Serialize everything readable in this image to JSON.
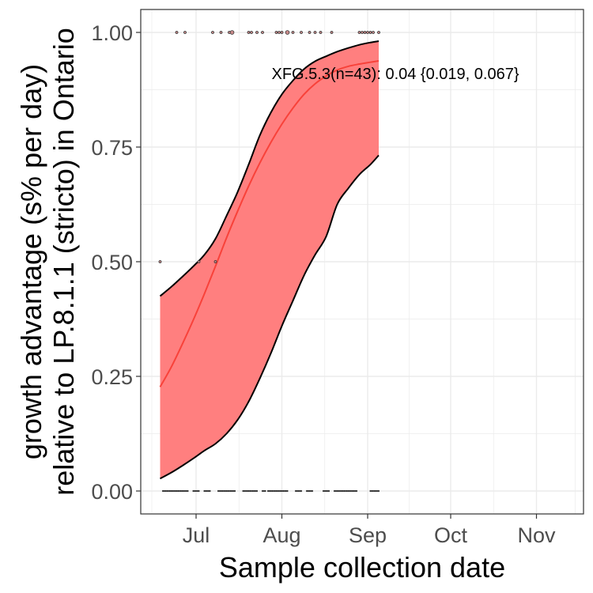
{
  "chart_data": {
    "type": "line",
    "xlabel": "Sample collection date",
    "ylabel_line1": "growth advantage (s% per day)",
    "ylabel_line2": "relative to LP.8.1.1 (stricto) in Ontario",
    "annotation": "XFG.5.3(n=43): 0.04 {0.019, 0.067}",
    "xlim": [
      "2025-06-11",
      "2025-11-18"
    ],
    "ylim": [
      -0.05,
      1.05
    ],
    "x_ticks": [
      {
        "date": "2025-07-01",
        "label": "Jul"
      },
      {
        "date": "2025-08-01",
        "label": "Aug"
      },
      {
        "date": "2025-09-01",
        "label": "Sep"
      },
      {
        "date": "2025-10-01",
        "label": "Oct"
      },
      {
        "date": "2025-11-01",
        "label": "Nov"
      }
    ],
    "y_ticks": [
      {
        "value": 0,
        "label": "0.00"
      },
      {
        "value": 0.25,
        "label": "0.25"
      },
      {
        "value": 0.5,
        "label": "0.50"
      },
      {
        "value": 0.75,
        "label": "0.75"
      },
      {
        "value": 1,
        "label": "1.00"
      }
    ],
    "grid": true,
    "colors": {
      "ribbon": "#ff7f7f",
      "fit_line": "#f8423a",
      "ribbon_edge": "#000000",
      "point_fill": "#c98a8a",
      "grid": "#ebebeb",
      "panel_border": "#333333"
    },
    "fit": [
      {
        "x": "2025-06-18",
        "y": 0.227,
        "lower": 0.027,
        "upper": 0.425
      },
      {
        "x": "2025-06-22",
        "y": 0.27,
        "lower": 0.04,
        "upper": 0.445
      },
      {
        "x": "2025-06-26",
        "y": 0.32,
        "lower": 0.055,
        "upper": 0.467
      },
      {
        "x": "2025-06-30",
        "y": 0.373,
        "lower": 0.071,
        "upper": 0.49
      },
      {
        "x": "2025-07-04",
        "y": 0.43,
        "lower": 0.088,
        "upper": 0.515
      },
      {
        "x": "2025-07-08",
        "y": 0.49,
        "lower": 0.103,
        "upper": 0.55
      },
      {
        "x": "2025-07-12",
        "y": 0.552,
        "lower": 0.125,
        "upper": 0.6
      },
      {
        "x": "2025-07-16",
        "y": 0.61,
        "lower": 0.155,
        "upper": 0.652
      },
      {
        "x": "2025-07-20",
        "y": 0.665,
        "lower": 0.195,
        "upper": 0.712
      },
      {
        "x": "2025-07-24",
        "y": 0.715,
        "lower": 0.245,
        "upper": 0.775
      },
      {
        "x": "2025-07-28",
        "y": 0.76,
        "lower": 0.3,
        "upper": 0.825
      },
      {
        "x": "2025-08-01",
        "y": 0.8,
        "lower": 0.36,
        "upper": 0.865
      },
      {
        "x": "2025-08-05",
        "y": 0.835,
        "lower": 0.415,
        "upper": 0.895
      },
      {
        "x": "2025-08-09",
        "y": 0.865,
        "lower": 0.47,
        "upper": 0.92
      },
      {
        "x": "2025-08-13",
        "y": 0.888,
        "lower": 0.515,
        "upper": 0.937
      },
      {
        "x": "2025-08-17",
        "y": 0.905,
        "lower": 0.555,
        "upper": 0.948
      },
      {
        "x": "2025-08-21",
        "y": 0.918,
        "lower": 0.625,
        "upper": 0.958
      },
      {
        "x": "2025-08-25",
        "y": 0.926,
        "lower": 0.66,
        "upper": 0.966
      },
      {
        "x": "2025-08-29",
        "y": 0.931,
        "lower": 0.69,
        "upper": 0.973
      },
      {
        "x": "2025-09-02",
        "y": 0.935,
        "lower": 0.712,
        "upper": 0.978
      },
      {
        "x": "2025-09-05",
        "y": 0.938,
        "lower": 0.732,
        "upper": 0.981
      }
    ],
    "points": [
      {
        "x": "2025-06-18",
        "y": 0.5,
        "size": 1
      },
      {
        "x": "2025-06-24",
        "y": 1,
        "size": 1
      },
      {
        "x": "2025-06-27",
        "y": 1,
        "size": 1
      },
      {
        "x": "2025-07-07",
        "y": 1,
        "size": 1
      },
      {
        "x": "2025-07-10",
        "y": 1,
        "size": 1
      },
      {
        "x": "2025-07-13",
        "y": 1,
        "size": 1
      },
      {
        "x": "2025-07-14",
        "y": 1,
        "size": 2
      },
      {
        "x": "2025-07-20",
        "y": 1,
        "size": 1
      },
      {
        "x": "2025-07-21",
        "y": 1,
        "size": 1
      },
      {
        "x": "2025-07-23",
        "y": 1,
        "size": 1
      },
      {
        "x": "2025-07-25",
        "y": 1,
        "size": 1
      },
      {
        "x": "2025-07-30",
        "y": 1,
        "size": 1
      },
      {
        "x": "2025-07-31",
        "y": 1,
        "size": 1
      },
      {
        "x": "2025-08-01",
        "y": 1,
        "size": 1
      },
      {
        "x": "2025-08-03",
        "y": 1,
        "size": 2
      },
      {
        "x": "2025-08-05",
        "y": 1,
        "size": 1
      },
      {
        "x": "2025-08-08",
        "y": 1,
        "size": 1
      },
      {
        "x": "2025-08-11",
        "y": 1,
        "size": 1
      },
      {
        "x": "2025-08-13",
        "y": 1,
        "size": 1
      },
      {
        "x": "2025-08-15",
        "y": 1,
        "size": 1
      },
      {
        "x": "2025-08-19",
        "y": 1,
        "size": 1
      },
      {
        "x": "2025-08-29",
        "y": 1,
        "size": 1
      },
      {
        "x": "2025-08-30",
        "y": 1,
        "size": 1
      },
      {
        "x": "2025-08-31",
        "y": 1,
        "size": 1
      },
      {
        "x": "2025-09-01",
        "y": 1,
        "size": 1
      },
      {
        "x": "2025-09-02",
        "y": 1,
        "size": 1
      },
      {
        "x": "2025-09-03",
        "y": 1,
        "size": 1
      },
      {
        "x": "2025-09-05",
        "y": 1,
        "size": 1
      },
      {
        "x": "2025-07-02",
        "y": 0.5,
        "size": 1
      },
      {
        "x": "2025-07-08",
        "y": 0.5,
        "size": 1
      }
    ],
    "zero_points": [
      {
        "x_range": [
          "2025-06-19",
          "2025-06-28"
        ],
        "step_days": 0.5
      },
      {
        "x_range": [
          "2025-06-30",
          "2025-07-02"
        ],
        "step_days": 0.5
      },
      {
        "x_range": [
          "2025-07-04",
          "2025-07-06"
        ],
        "step_days": 0.5
      },
      {
        "x_range": [
          "2025-07-09",
          "2025-07-15"
        ],
        "step_days": 0.5
      },
      {
        "x_range": [
          "2025-07-18",
          "2025-07-23"
        ],
        "step_days": 0.5
      },
      {
        "x_range": [
          "2025-07-25",
          "2025-07-26"
        ],
        "step_days": 0.5
      },
      {
        "x_range": [
          "2025-07-27",
          "2025-08-03"
        ],
        "step_days": 0.5
      },
      {
        "x_range": [
          "2025-08-06",
          "2025-08-08"
        ],
        "step_days": 0.5
      },
      {
        "x_range": [
          "2025-08-10",
          "2025-08-12"
        ],
        "step_days": 0.5
      },
      {
        "x_range": [
          "2025-08-16",
          "2025-08-18"
        ],
        "step_days": 0.5
      },
      {
        "x_range": [
          "2025-08-20",
          "2025-08-28"
        ],
        "step_days": 0.5
      },
      {
        "x_range": [
          "2025-09-02",
          "2025-09-05"
        ],
        "step_days": 0.5
      }
    ]
  }
}
